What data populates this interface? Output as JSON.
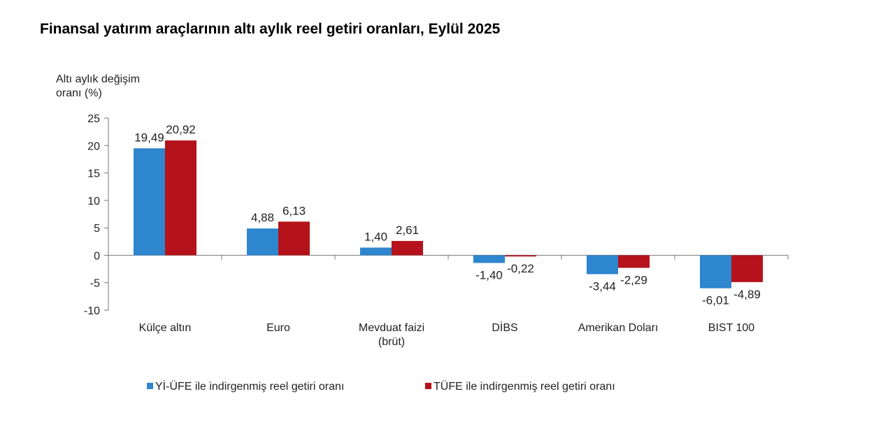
{
  "title": "Finansal yatırım araçlarının altı aylık reel getiri oranları, Eylül 2025",
  "chart_data": {
    "type": "bar",
    "ylabel": [
      "Altı aylık değişim",
      "oranı (%)"
    ],
    "ylim": [
      -10,
      25
    ],
    "yticks": [
      25,
      20,
      15,
      10,
      5,
      0,
      -5,
      -10
    ],
    "grid": false,
    "legend_position": "bottom",
    "categories": [
      [
        "Külçe altın"
      ],
      [
        "Euro"
      ],
      [
        "Mevduat faizi",
        "(brüt)"
      ],
      [
        "DİBS"
      ],
      [
        "Amerikan Doları"
      ],
      [
        "BIST 100"
      ]
    ],
    "series": [
      {
        "name": "Yİ-ÜFE ile indirgenmiş reel getiri oranı",
        "color": "#2E86CE",
        "values": [
          19.49,
          4.88,
          1.4,
          -1.4,
          -3.44,
          -6.01
        ],
        "labels": [
          "19,49",
          "4,88",
          "1,40",
          "-1,40",
          "-3,44",
          "-6,01"
        ]
      },
      {
        "name": "TÜFE ile indirgenmiş reel getiri oranı",
        "color": "#B5121B",
        "values": [
          20.92,
          6.13,
          2.61,
          -0.22,
          -2.29,
          -4.89
        ],
        "labels": [
          "20,92",
          "6,13",
          "2,61",
          "-0,22",
          "-2,29",
          "-4,89"
        ]
      }
    ]
  }
}
